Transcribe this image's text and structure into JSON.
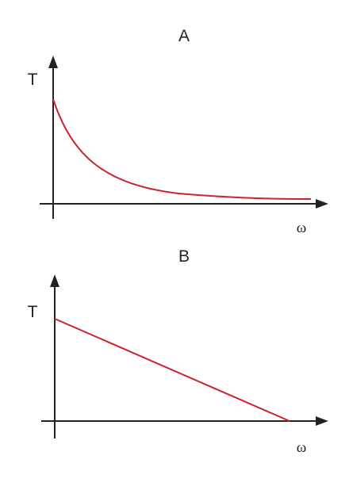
{
  "diagrams": [
    {
      "title": "A",
      "y_label": "T",
      "x_label": "ω"
    },
    {
      "title": "B",
      "y_label": "T",
      "x_label": "ω"
    }
  ]
}
